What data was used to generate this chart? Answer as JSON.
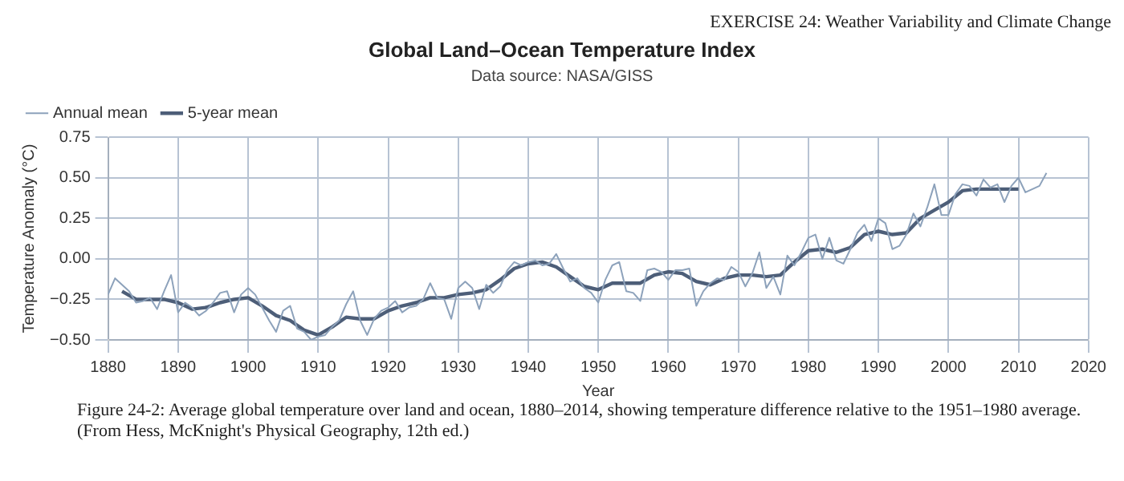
{
  "chart_data": {
    "type": "line",
    "title": "Global Land–Ocean Temperature Index",
    "subtitle": "Data source: NASA/GISS",
    "xlabel": "Year",
    "ylabel": "Temperature Anomaly (°C)",
    "annotations": [
      "EXERCISE 24: Weather Variability and Climate Change",
      "Figure 24-2: Average global temperature over land and ocean, 1880–2014, showing temperature difference relative to the 1951–1980 average. (From Hess, McKnight's Physical Geography, 12th ed.)"
    ],
    "x": [
      1880,
      1881,
      1882,
      1883,
      1884,
      1885,
      1886,
      1887,
      1888,
      1889,
      1890,
      1891,
      1892,
      1893,
      1894,
      1895,
      1896,
      1897,
      1898,
      1899,
      1900,
      1901,
      1902,
      1903,
      1904,
      1905,
      1906,
      1907,
      1908,
      1909,
      1910,
      1911,
      1912,
      1913,
      1914,
      1915,
      1916,
      1917,
      1918,
      1919,
      1920,
      1921,
      1922,
      1923,
      1924,
      1925,
      1926,
      1927,
      1928,
      1929,
      1930,
      1931,
      1932,
      1933,
      1934,
      1935,
      1936,
      1937,
      1938,
      1939,
      1940,
      1941,
      1942,
      1943,
      1944,
      1945,
      1946,
      1947,
      1948,
      1949,
      1950,
      1951,
      1952,
      1953,
      1954,
      1955,
      1956,
      1957,
      1958,
      1959,
      1960,
      1961,
      1962,
      1963,
      1964,
      1965,
      1966,
      1967,
      1968,
      1969,
      1970,
      1971,
      1972,
      1973,
      1974,
      1975,
      1976,
      1977,
      1978,
      1979,
      1980,
      1981,
      1982,
      1983,
      1984,
      1985,
      1986,
      1987,
      1988,
      1989,
      1990,
      1991,
      1992,
      1993,
      1994,
      1995,
      1996,
      1997,
      1998,
      1999,
      2000,
      2001,
      2002,
      2003,
      2004,
      2005,
      2006,
      2007,
      2008,
      2009,
      2010,
      2011,
      2012,
      2013,
      2014
    ],
    "series": [
      {
        "name": "Annual mean",
        "color": "#8da2bb",
        "values": [
          -0.22,
          -0.12,
          -0.16,
          -0.2,
          -0.27,
          -0.26,
          -0.24,
          -0.31,
          -0.2,
          -0.1,
          -0.33,
          -0.27,
          -0.3,
          -0.35,
          -0.32,
          -0.27,
          -0.21,
          -0.2,
          -0.33,
          -0.22,
          -0.18,
          -0.22,
          -0.3,
          -0.38,
          -0.45,
          -0.32,
          -0.29,
          -0.43,
          -0.45,
          -0.5,
          -0.48,
          -0.47,
          -0.42,
          -0.38,
          -0.28,
          -0.2,
          -0.38,
          -0.47,
          -0.37,
          -0.32,
          -0.3,
          -0.26,
          -0.33,
          -0.3,
          -0.29,
          -0.25,
          -0.15,
          -0.24,
          -0.25,
          -0.37,
          -0.18,
          -0.14,
          -0.18,
          -0.31,
          -0.16,
          -0.21,
          -0.17,
          -0.07,
          -0.02,
          -0.04,
          -0.02,
          -0.01,
          -0.04,
          -0.03,
          0.03,
          -0.06,
          -0.14,
          -0.12,
          -0.18,
          -0.21,
          -0.27,
          -0.13,
          -0.04,
          -0.02,
          -0.2,
          -0.21,
          -0.26,
          -0.07,
          -0.06,
          -0.08,
          -0.13,
          -0.07,
          -0.07,
          -0.06,
          -0.29,
          -0.2,
          -0.15,
          -0.12,
          -0.13,
          -0.05,
          -0.08,
          -0.17,
          -0.09,
          0.04,
          -0.18,
          -0.11,
          -0.22,
          0.02,
          -0.04,
          0.04,
          0.13,
          0.15,
          0.0,
          0.13,
          -0.01,
          -0.03,
          0.06,
          0.16,
          0.21,
          0.11,
          0.25,
          0.22,
          0.06,
          0.08,
          0.15,
          0.28,
          0.2,
          0.32,
          0.46,
          0.27,
          0.27,
          0.4,
          0.46,
          0.45,
          0.39,
          0.49,
          0.44,
          0.46,
          0.35,
          0.45,
          0.5,
          0.41,
          0.43,
          0.45,
          0.53
        ]
      },
      {
        "name": "5-year mean",
        "color": "#4d5e78",
        "x": [
          1882,
          1884,
          1886,
          1888,
          1890,
          1892,
          1894,
          1896,
          1898,
          1900,
          1902,
          1904,
          1906,
          1908,
          1910,
          1912,
          1914,
          1916,
          1918,
          1920,
          1922,
          1924,
          1926,
          1928,
          1930,
          1932,
          1934,
          1936,
          1938,
          1940,
          1942,
          1944,
          1946,
          1948,
          1950,
          1952,
          1954,
          1956,
          1958,
          1960,
          1962,
          1964,
          1966,
          1968,
          1970,
          1972,
          1974,
          1976,
          1978,
          1980,
          1982,
          1984,
          1986,
          1988,
          1990,
          1992,
          1994,
          1996,
          1998,
          2000,
          2002,
          2004,
          2006,
          2008,
          2010
        ],
        "values": [
          -0.2,
          -0.25,
          -0.25,
          -0.25,
          -0.27,
          -0.31,
          -0.3,
          -0.27,
          -0.25,
          -0.24,
          -0.29,
          -0.35,
          -0.38,
          -0.44,
          -0.47,
          -0.42,
          -0.36,
          -0.37,
          -0.37,
          -0.32,
          -0.29,
          -0.27,
          -0.24,
          -0.24,
          -0.22,
          -0.21,
          -0.19,
          -0.13,
          -0.06,
          -0.03,
          -0.02,
          -0.05,
          -0.11,
          -0.17,
          -0.19,
          -0.15,
          -0.15,
          -0.15,
          -0.1,
          -0.08,
          -0.09,
          -0.14,
          -0.16,
          -0.12,
          -0.1,
          -0.1,
          -0.11,
          -0.1,
          -0.02,
          0.05,
          0.06,
          0.04,
          0.07,
          0.15,
          0.17,
          0.15,
          0.16,
          0.25,
          0.3,
          0.35,
          0.42,
          0.43,
          0.43,
          0.43,
          0.43
        ]
      }
    ],
    "xlim": [
      1880,
      2020
    ],
    "xticks": [
      1880,
      1890,
      1900,
      1910,
      1920,
      1930,
      1940,
      1950,
      1960,
      1970,
      1980,
      1990,
      2000,
      2010,
      2020
    ],
    "ylim": [
      -0.5,
      0.75
    ],
    "yticks": [
      {
        "value": -0.5,
        "label": "−0.50"
      },
      {
        "value": -0.25,
        "label": "−0.25"
      },
      {
        "value": 0,
        "label": "0.00"
      },
      0.25,
      {
        "value": 0.5,
        "label": "0.50"
      },
      0.75
    ],
    "grid": true,
    "legend": "top left",
    "marker": "none",
    "line_style": "solid"
  }
}
